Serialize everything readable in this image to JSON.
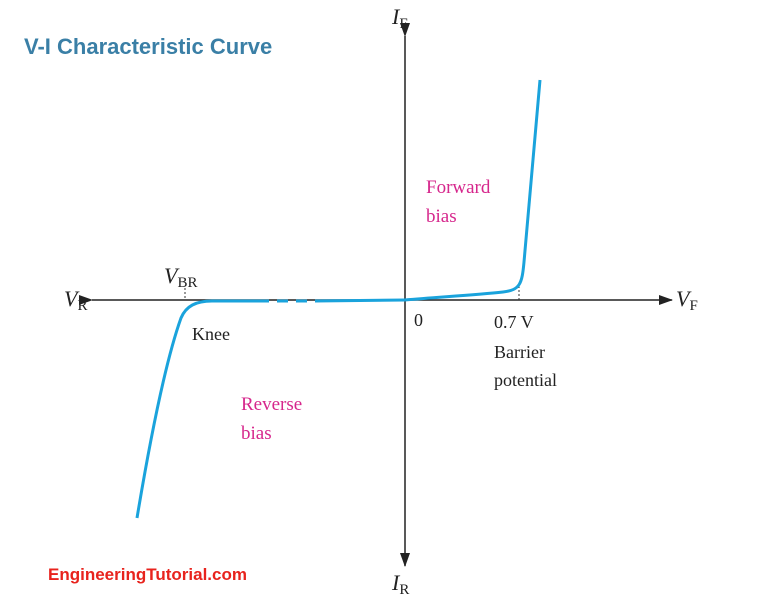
{
  "title": "V-I Characteristic Curve",
  "footer": "EngineeringTutorial.com",
  "colors": {
    "title": "#3a7fa6",
    "footer": "#e8231d",
    "curve": "#1aa3dc",
    "region_label": "#d6278c",
    "axis": "#222222"
  },
  "axes": {
    "y_top": {
      "main": "I",
      "sub": "F"
    },
    "y_bottom": {
      "main": "I",
      "sub": "R"
    },
    "x_left": {
      "main": "V",
      "sub": "R"
    },
    "x_right": {
      "main": "V",
      "sub": "F"
    },
    "vbr": {
      "main": "V",
      "sub": "BR"
    }
  },
  "labels": {
    "origin": "0",
    "threshold": "0.7 V",
    "barrier_line1": "Barrier",
    "barrier_line2": "potential",
    "knee": "Knee",
    "forward_line1": "Forward",
    "forward_line2": "bias",
    "reverse_line1": "Reverse",
    "reverse_line2": "bias"
  }
}
